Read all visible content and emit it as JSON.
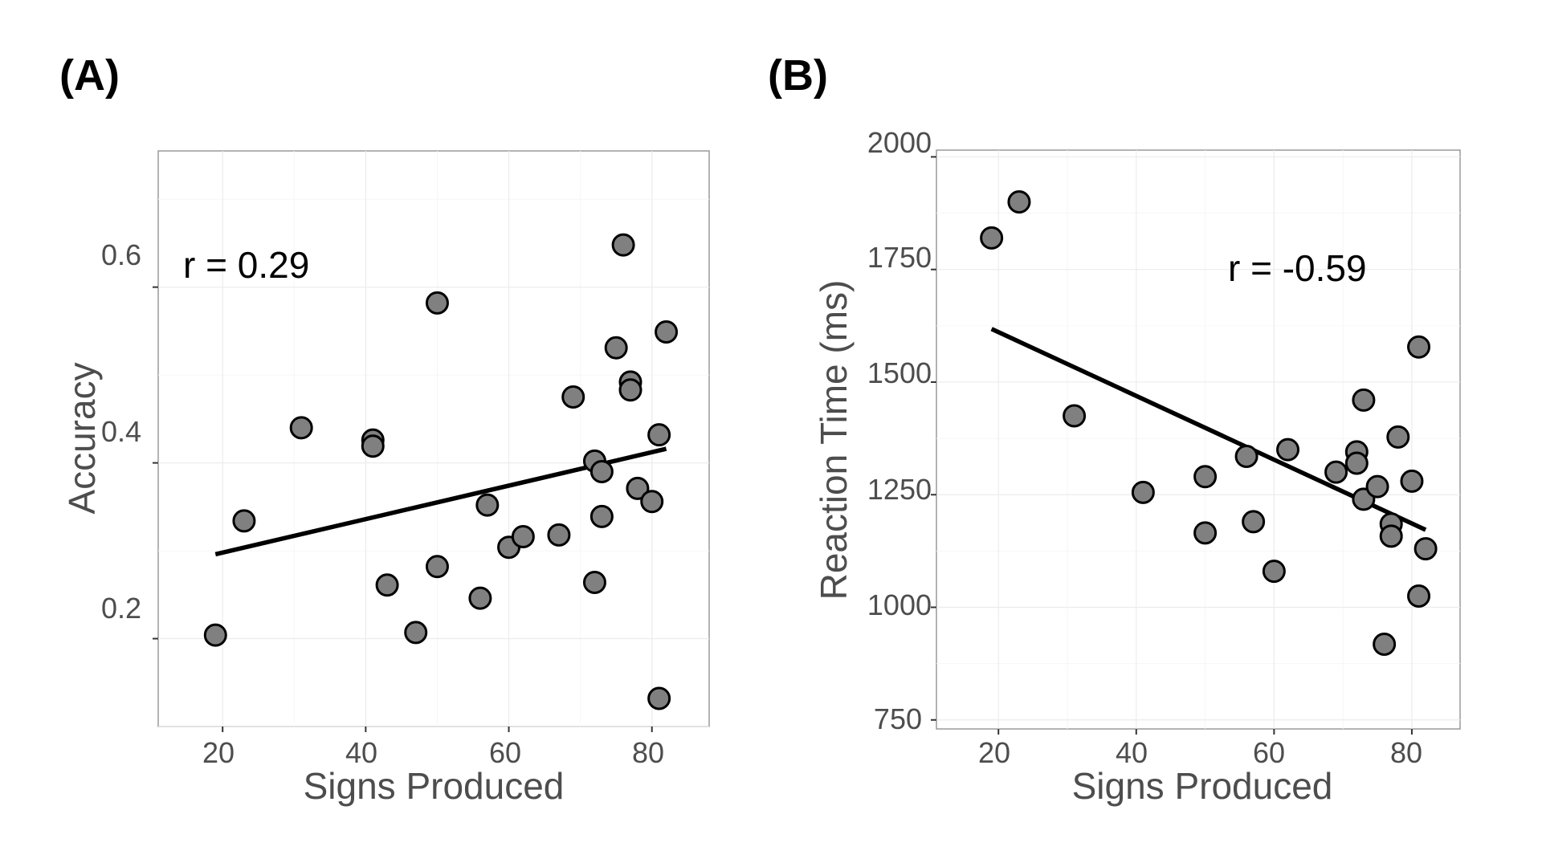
{
  "figure": {
    "marker_fill": "#808080",
    "marker_edge": "#000000",
    "line_color": "#000000",
    "text_color": "#4d4d4d"
  },
  "chart_data": [
    {
      "panel_label": "(A)",
      "type": "scatter",
      "xlabel": "Signs Produced",
      "ylabel": "Accuracy",
      "annotation": "r = 0.29",
      "annotation_position": "top-left",
      "xlim": [
        11,
        88
      ],
      "ylim": [
        0.1,
        0.755
      ],
      "xticks": [
        20,
        40,
        60,
        80
      ],
      "xtick_labels": [
        "20",
        "40",
        "60",
        "80"
      ],
      "yticks": [
        0.2,
        0.4,
        0.6
      ],
      "ytick_labels": [
        "0.2",
        "0.4",
        "0.6"
      ],
      "grid": true,
      "series": [
        {
          "points": [
            [
              19,
              0.204
            ],
            [
              23,
              0.334
            ],
            [
              31,
              0.44
            ],
            [
              41,
              0.426
            ],
            [
              41,
              0.419
            ],
            [
              43,
              0.261
            ],
            [
              47,
              0.207
            ],
            [
              50,
              0.582
            ],
            [
              50,
              0.282
            ],
            [
              56,
              0.246
            ],
            [
              57,
              0.352
            ],
            [
              60,
              0.304
            ],
            [
              62,
              0.316
            ],
            [
              67,
              0.318
            ],
            [
              69,
              0.475
            ],
            [
              72,
              0.402
            ],
            [
              72,
              0.264
            ],
            [
              73,
              0.39
            ],
            [
              73,
              0.339
            ],
            [
              75,
              0.531
            ],
            [
              76,
              0.648
            ],
            [
              77,
              0.492
            ],
            [
              77,
              0.483
            ],
            [
              78,
              0.371
            ],
            [
              80,
              0.356
            ],
            [
              81,
              0.432
            ],
            [
              81,
              0.132
            ],
            [
              82,
              0.549
            ]
          ],
          "fit": {
            "x": [
              19,
              82
            ],
            "y": [
              0.296,
              0.416
            ]
          }
        }
      ]
    },
    {
      "panel_label": "(B)",
      "type": "scatter",
      "xlabel": "Signs Produced",
      "ylabel": "Reaction Time (ms)",
      "annotation": "r = -0.59",
      "annotation_position": "top-right",
      "xlim": [
        11,
        87
      ],
      "ylim": [
        730,
        2015
      ],
      "xticks": [
        20,
        40,
        60,
        80
      ],
      "xtick_labels": [
        "20",
        "40",
        "60",
        "80"
      ],
      "yticks": [
        750,
        1000,
        1250,
        1500,
        1750,
        2000
      ],
      "ytick_labels": [
        "750",
        "1000",
        "1250",
        "1500",
        "1750",
        "2000"
      ],
      "grid": true,
      "series": [
        {
          "points": [
            [
              19,
              1820
            ],
            [
              23,
              1900
            ],
            [
              31,
              1425
            ],
            [
              41,
              1255
            ],
            [
              50,
              1290
            ],
            [
              50,
              1165
            ],
            [
              56,
              1335
            ],
            [
              57,
              1190
            ],
            [
              60,
              1080
            ],
            [
              62,
              1350
            ],
            [
              69,
              1300
            ],
            [
              72,
              1345
            ],
            [
              72,
              1320
            ],
            [
              73,
              1460
            ],
            [
              73,
              1240
            ],
            [
              75,
              1268
            ],
            [
              76,
              918
            ],
            [
              77,
              1185
            ],
            [
              77,
              1158
            ],
            [
              78,
              1378
            ],
            [
              80,
              1280
            ],
            [
              81,
              1578
            ],
            [
              81,
              1025
            ],
            [
              82,
              1130
            ]
          ],
          "fit": {
            "x": [
              19,
              82
            ],
            "y": [
              1618,
              1172
            ]
          }
        }
      ]
    }
  ]
}
